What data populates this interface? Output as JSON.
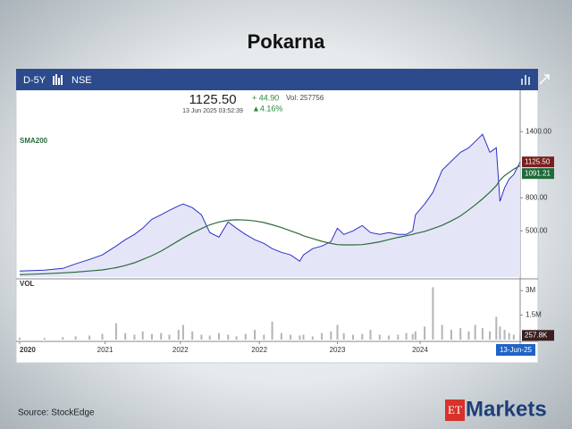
{
  "chart_data": {
    "type": "line",
    "title": "Pokarna",
    "interval": "D-5Y",
    "exchange": "NSE",
    "quote": {
      "price": "1125.50",
      "change": "+ 44.90",
      "volume": "Vol: 257756",
      "timestamp": "13 Jun 2025 03:52:39",
      "change_pct": "▲4.16%"
    },
    "x": [
      2020.0,
      2020.27,
      2020.47,
      2020.61,
      2020.76,
      2020.9,
      2021.05,
      2021.15,
      2021.25,
      2021.34,
      2021.44,
      2021.54,
      2021.63,
      2021.73,
      2021.78,
      2021.88,
      2021.98,
      2022.07,
      2022.17,
      2022.27,
      2022.36,
      2022.46,
      2022.56,
      2022.66,
      2022.75,
      2022.85,
      2022.95,
      2023.05,
      2023.09,
      2023.19,
      2023.29,
      2023.39,
      2023.46,
      2023.53,
      2023.63,
      2023.73,
      2023.82,
      2023.92,
      2024.02,
      2024.12,
      2024.21,
      2024.28,
      2024.31,
      2024.41,
      2024.5,
      2024.6,
      2024.7,
      2024.8,
      2024.89,
      2024.96,
      2025.04,
      2025.12,
      2025.19,
      2025.23,
      2025.28,
      2025.33,
      2025.38,
      2025.45
    ],
    "xlim": [
      2020,
      2025.45
    ],
    "xticks": [
      {
        "value": 2020,
        "label": "2020"
      },
      {
        "value": 2020.93,
        "label": "2021"
      },
      {
        "value": 2021.75,
        "label": "2022"
      },
      {
        "value": 2022.61,
        "label": "2022"
      },
      {
        "value": 2023.46,
        "label": "2023"
      },
      {
        "value": 2024.36,
        "label": "2024"
      },
      {
        "value": 2025.45,
        "label": "13-Jun-25"
      }
    ],
    "series": [
      {
        "color": "#2f2fc9",
        "values": [
          135,
          143,
          159,
          200,
          240,
          281,
          362,
          419,
          467,
          524,
          605,
          646,
          686,
          727,
          743,
          711,
          646,
          484,
          443,
          581,
          524,
          467,
          419,
          386,
          338,
          305,
          281,
          224,
          281,
          338,
          362,
          402,
          524,
          467,
          500,
          548,
          484,
          467,
          484,
          467,
          467,
          500,
          646,
          743,
          849,
          1051,
          1132,
          1213,
          1254,
          1311,
          1376,
          1213,
          1254,
          767,
          889,
          970,
          1011,
          1125.5
        ]
      },
      {
        "name": "SMA200",
        "color": "#2e6b3c",
        "values": [
          102,
          110,
          118,
          125,
          135,
          145,
          165,
          185,
          210,
          240,
          275,
          315,
          360,
          410,
          435,
          480,
          520,
          555,
          580,
          595,
          600,
          598,
          590,
          575,
          555,
          530,
          500,
          470,
          455,
          430,
          405,
          385,
          375,
          372,
          372,
          375,
          385,
          400,
          420,
          440,
          455,
          468,
          475,
          495,
          520,
          550,
          590,
          635,
          690,
          735,
          790,
          850,
          910,
          960,
          1000,
          1030,
          1060,
          1091.21
        ]
      }
    ],
    "ylim": [
      80,
      1760
    ],
    "yticks": [
      {
        "value": 1400,
        "label": "1400.00"
      },
      {
        "value": 800,
        "label": "800.00"
      },
      {
        "value": 500,
        "label": "500.00"
      }
    ],
    "end_labels": [
      {
        "value": 1125.5,
        "label": "1125.50",
        "color": "#7a1f1f"
      },
      {
        "value": 1091.21,
        "label": "1091.21",
        "color": "#1f6b3a"
      }
    ],
    "volume": {
      "name": "VOL",
      "color": "#b4b4b8",
      "values": [
        120000,
        100000,
        150000,
        200000,
        250000,
        350000,
        1000000,
        400000,
        300000,
        500000,
        350000,
        400000,
        300000,
        600000,
        900000,
        500000,
        300000,
        250000,
        400000,
        300000,
        200000,
        350000,
        600000,
        300000,
        1100000,
        400000,
        300000,
        250000,
        300000,
        200000,
        400000,
        500000,
        900000,
        400000,
        300000,
        350000,
        600000,
        300000,
        250000,
        300000,
        400000,
        350000,
        500000,
        800000,
        3200000,
        900000,
        600000,
        700000,
        500000,
        900000,
        700000,
        500000,
        1400000,
        800000,
        600000,
        400000,
        300000,
        257756
      ],
      "ylim": [
        0,
        3550000
      ],
      "yticks": [
        {
          "value": 3000000,
          "label": "3M"
        },
        {
          "value": 1500000,
          "label": "1.5M"
        }
      ],
      "end_label": {
        "value": 257800,
        "label": "257.8K"
      }
    },
    "source": "Source:  StockEdge",
    "logo": {
      "brand": "ET",
      "name": "Markets"
    }
  }
}
